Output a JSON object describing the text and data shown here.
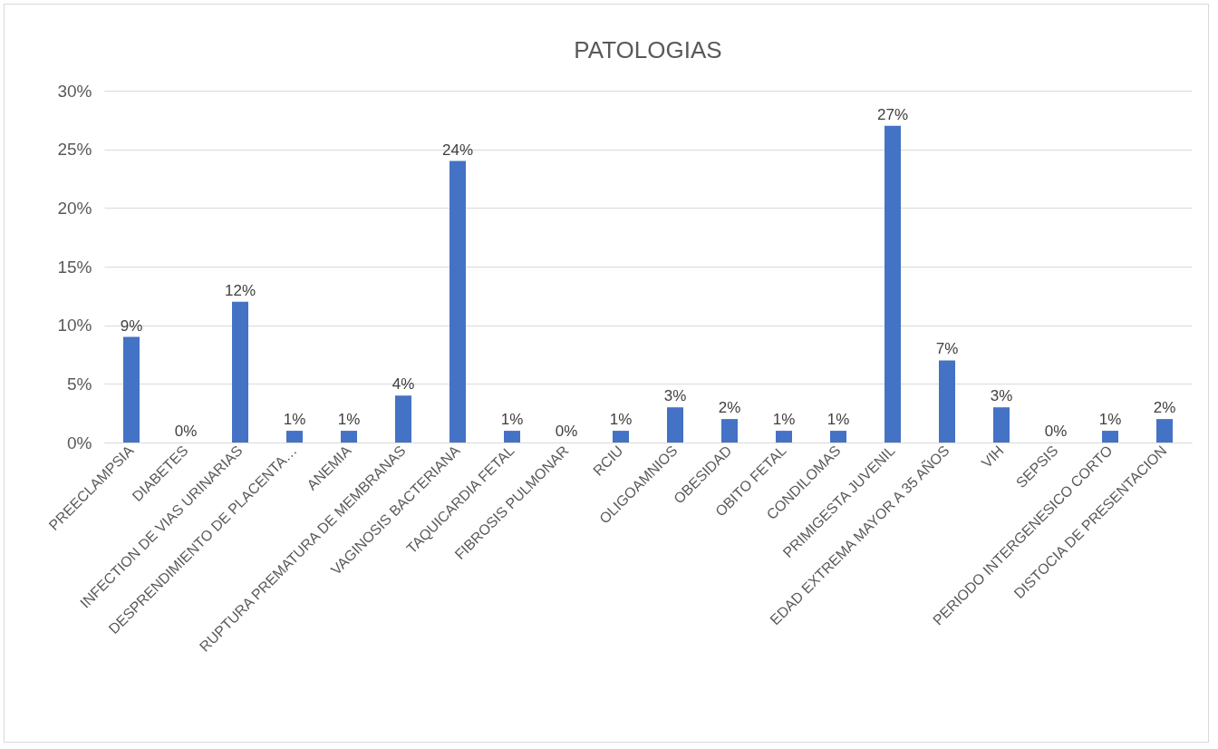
{
  "chart_data": {
    "type": "bar",
    "title": "PATOLOGIAS",
    "categories": [
      "PREECLAMPSIA",
      "DIABETES",
      "INFECTION DE VIAS URINARIAS",
      "DESPRENDIMIENTO DE PLACENTA…",
      "ANEMIA",
      "RUPTURA PREMATURA DE MEMBRANAS",
      "VAGINOSIS BACTERIANA",
      "TAQUICARDIA FETAL",
      "FIBROSIS PULMONAR",
      "RCIU",
      "OLIGOAMNIOS",
      "OBESIDAD",
      "OBITO FETAL",
      "CONDILOMAS",
      "PRIMIGESTA JUVENIL",
      "EDAD EXTREMA MAYOR  A 35 AÑOS",
      "VIH",
      "SEPSIS",
      "PERIODO INTERGENESICO CORTO",
      "DISTOCIA DE PRESENTACION"
    ],
    "values": [
      9,
      0,
      12,
      1,
      1,
      4,
      24,
      1,
      0,
      1,
      3,
      2,
      1,
      1,
      27,
      7,
      3,
      0,
      1,
      2
    ],
    "value_labels": [
      "9%",
      "0%",
      "12%",
      "1%",
      "1%",
      "4%",
      "24%",
      "1%",
      "0%",
      "1%",
      "3%",
      "2%",
      "1%",
      "1%",
      "27%",
      "7%",
      "3%",
      "0%",
      "1%",
      "2%"
    ],
    "color": "#4472c4",
    "ylim": [
      0,
      30
    ],
    "yticks": [
      {
        "value": 0,
        "label": "0%"
      },
      {
        "value": 5,
        "label": "5%"
      },
      {
        "value": 10,
        "label": "10%"
      },
      {
        "value": 15,
        "label": "15%"
      },
      {
        "value": 20,
        "label": "20%"
      },
      {
        "value": 25,
        "label": "25%"
      },
      {
        "value": 30,
        "label": "30%"
      }
    ],
    "grid": "y"
  }
}
